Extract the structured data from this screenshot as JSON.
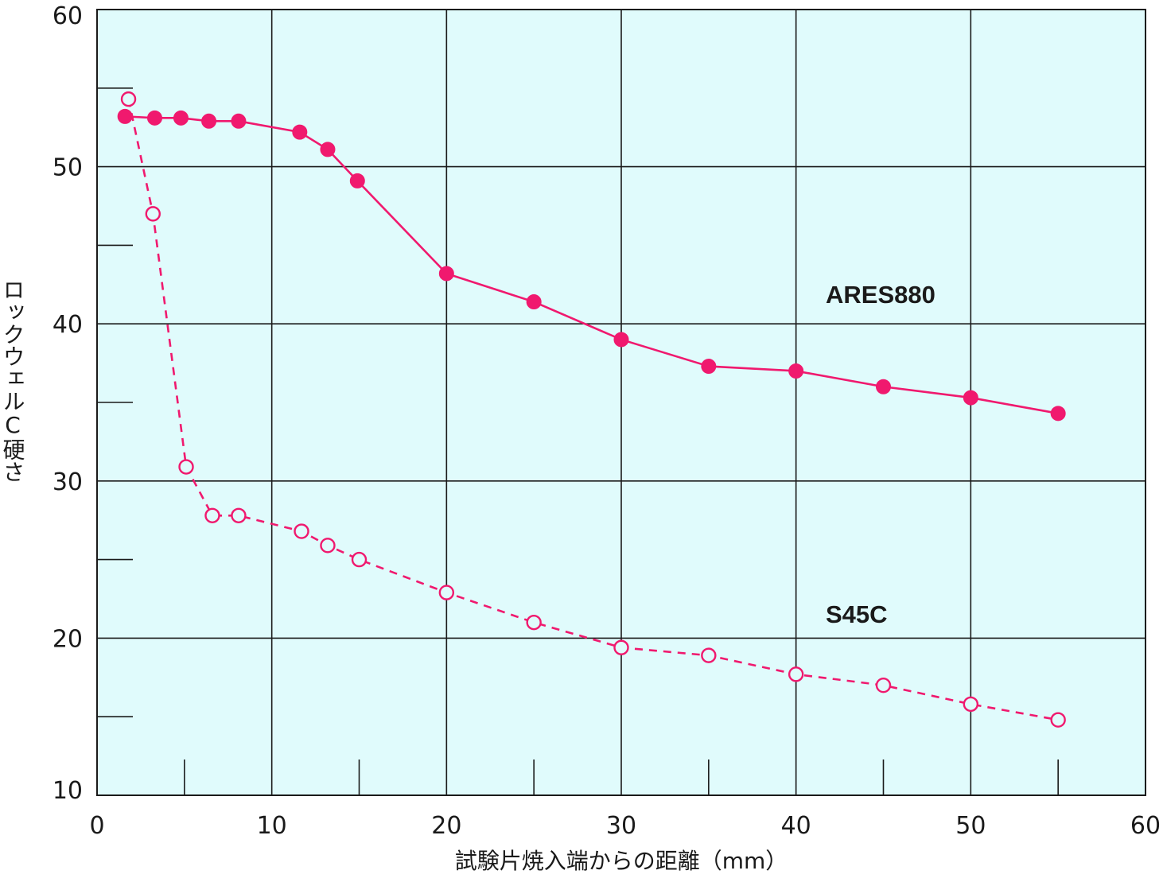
{
  "colors": {
    "plot_background": "#e0fbfc",
    "grid": "#1a1a1a",
    "series": "#f0196e"
  },
  "chart_data": {
    "type": "line",
    "title": "",
    "xlabel": "試験片焼入端からの距離（mm）",
    "ylabel": "ロックウェルC硬さ",
    "xlim": [
      0,
      60
    ],
    "ylim": [
      10,
      60
    ],
    "x_ticks": [
      0,
      10,
      20,
      30,
      40,
      50,
      60
    ],
    "y_ticks": [
      10,
      20,
      30,
      40,
      50,
      60
    ],
    "x_minor_ticks": [
      5,
      15,
      25,
      35,
      45,
      55
    ],
    "y_minor_ticks": [
      15,
      25,
      35,
      45,
      55
    ],
    "grid": true,
    "legend": "direct labels",
    "series": [
      {
        "name": "ARES880",
        "marker": "filled-circle",
        "line": "solid",
        "x": [
          1.6,
          3.3,
          4.8,
          6.4,
          8.1,
          11.6,
          13.2,
          14.9,
          20.0,
          25.0,
          30.0,
          35.0,
          40.0,
          45.0,
          50.0,
          55.0
        ],
        "y": [
          53.2,
          53.1,
          53.1,
          52.9,
          52.9,
          52.2,
          51.1,
          49.1,
          43.2,
          41.4,
          39.0,
          37.3,
          37.0,
          36.0,
          35.3,
          34.3
        ]
      },
      {
        "name": "S45C",
        "marker": "open-circle",
        "line": "dashed",
        "x": [
          1.8,
          3.2,
          5.1,
          6.6,
          8.1,
          11.7,
          13.2,
          15.0,
          20.0,
          25.0,
          30.0,
          35.0,
          40.0,
          45.0,
          50.0,
          55.0
        ],
        "y": [
          54.3,
          47.0,
          30.9,
          27.8,
          27.8,
          26.8,
          25.9,
          25.0,
          22.9,
          21.0,
          19.4,
          18.9,
          17.7,
          17.0,
          15.8,
          14.8
        ]
      }
    ]
  }
}
